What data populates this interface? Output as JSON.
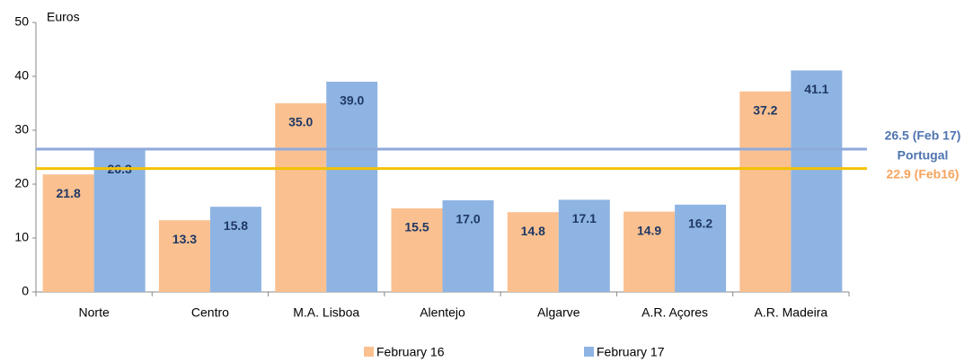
{
  "chart_data": {
    "type": "bar",
    "y_unit_label": "Euros",
    "categories": [
      "Norte",
      "Centro",
      "M.A. Lisboa",
      "Alentejo",
      "Algarve",
      "A.R. Açores",
      "A.R. Madeira"
    ],
    "series": [
      {
        "name": "February 16",
        "color": "#fac090",
        "values": [
          21.8,
          13.3,
          35.0,
          15.5,
          14.8,
          14.9,
          37.2
        ],
        "value_labels": [
          "21.8",
          "13.3",
          "35.0",
          "15.5",
          "14.8",
          "14.9",
          "37.2"
        ]
      },
      {
        "name": "February 17",
        "color": "#8eb4e3",
        "values": [
          26.3,
          15.8,
          39.0,
          17.0,
          17.1,
          16.2,
          41.1
        ],
        "value_labels": [
          "26.3",
          "15.8",
          "39.0",
          "17.0",
          "17.1",
          "16.2",
          "41.1"
        ]
      }
    ],
    "reference_lines": [
      {
        "value": 26.5,
        "label": "26.5 (Feb 17)",
        "color": "#8eaadb",
        "label_color": "#4f74b0"
      },
      {
        "value": 22.9,
        "label": "22.9 (Feb16)",
        "color": "#f2c200",
        "label_color": "#f7a35c"
      }
    ],
    "reference_name": "Portugal",
    "ylim": [
      0,
      50
    ],
    "yticks": [
      0,
      10,
      20,
      30,
      40,
      50
    ]
  }
}
